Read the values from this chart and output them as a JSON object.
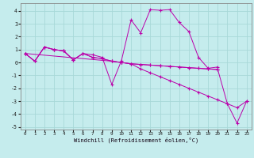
{
  "title": "",
  "xlabel": "Windchill (Refroidissement éolien,°C)",
  "background_color": "#c5eced",
  "grid_color": "#a8d8d8",
  "line_color": "#bb00aa",
  "xlim": [
    -0.5,
    23.5
  ],
  "ylim": [
    -5.2,
    4.6
  ],
  "yticks": [
    -5,
    -4,
    -3,
    -2,
    -1,
    0,
    1,
    2,
    3,
    4
  ],
  "xticks": [
    0,
    1,
    2,
    3,
    4,
    5,
    6,
    7,
    8,
    9,
    10,
    11,
    12,
    13,
    14,
    15,
    16,
    17,
    18,
    19,
    20,
    21,
    22,
    23
  ],
  "line1_x": [
    0,
    1,
    2,
    3,
    4,
    5,
    6,
    7,
    8,
    9,
    10,
    11,
    12,
    13,
    14,
    15,
    16,
    17,
    18,
    19,
    20
  ],
  "line1_y": [
    0.7,
    0.1,
    1.2,
    1.0,
    0.9,
    0.2,
    0.7,
    0.6,
    0.4,
    -1.7,
    0.15,
    3.3,
    2.3,
    4.1,
    4.05,
    4.1,
    3.1,
    2.4,
    0.4,
    -0.45,
    -0.35
  ],
  "line2_x": [
    0,
    1,
    2,
    3,
    4,
    5,
    6,
    7,
    8,
    9,
    10,
    11,
    12,
    13,
    14,
    15,
    16,
    17,
    18,
    19,
    20
  ],
  "line2_y": [
    0.7,
    0.1,
    1.2,
    1.0,
    0.9,
    0.2,
    0.7,
    0.4,
    0.3,
    0.1,
    0.0,
    -0.1,
    -0.15,
    -0.2,
    -0.25,
    -0.3,
    -0.35,
    -0.4,
    -0.45,
    -0.5,
    -0.55
  ],
  "line3_x": [
    0,
    1,
    2,
    3,
    4,
    5,
    6,
    7,
    8,
    9,
    10,
    11,
    12,
    13,
    14,
    15,
    16,
    17,
    18,
    19,
    20,
    21,
    22,
    23
  ],
  "line3_y": [
    0.7,
    0.1,
    1.2,
    1.0,
    0.9,
    0.2,
    0.7,
    0.4,
    0.3,
    0.1,
    0.0,
    -0.1,
    -0.15,
    -0.2,
    -0.25,
    -0.3,
    -0.35,
    -0.4,
    -0.45,
    -0.5,
    -0.55,
    -3.2,
    -4.7,
    -3.0
  ],
  "line4_x": [
    0,
    9,
    10,
    11,
    12,
    13,
    14,
    15,
    16,
    17,
    18,
    19,
    20,
    21,
    22,
    23
  ],
  "line4_y": [
    0.7,
    0.1,
    0.0,
    -0.1,
    -0.5,
    -0.8,
    -1.1,
    -1.4,
    -1.7,
    -2.0,
    -2.3,
    -2.6,
    -2.9,
    -3.2,
    -3.5,
    -3.0
  ]
}
